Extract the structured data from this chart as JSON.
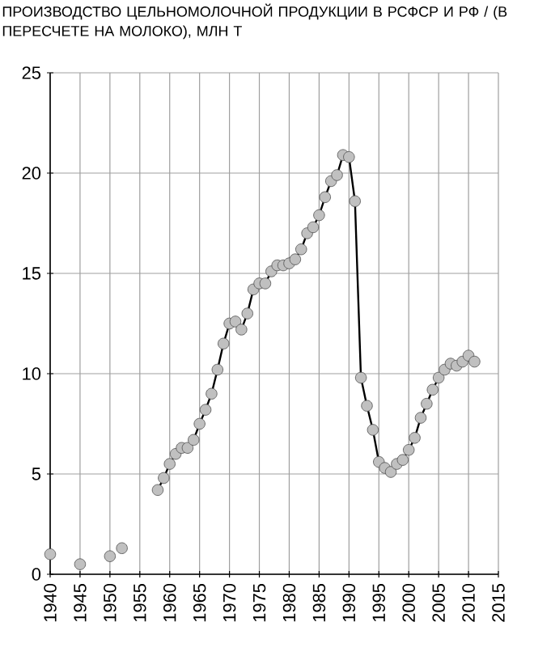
{
  "chart_data": {
    "type": "line",
    "title": "ПРОИЗВОДСТВО ЦЕЛЬНОМОЛОЧНОЙ ПРОДУКЦИИ В РСФСР И РФ / (В ПЕРЕСЧЕТЕ НА МОЛОКО), МЛН Т",
    "xlim": [
      1940,
      2015
    ],
    "xticks": [
      1940,
      1945,
      1950,
      1955,
      1960,
      1965,
      1970,
      1975,
      1980,
      1985,
      1990,
      1995,
      2000,
      2005,
      2010,
      2015
    ],
    "ylim": [
      0,
      25
    ],
    "yticks": [
      0,
      5,
      10,
      15,
      20,
      25
    ],
    "grid": true,
    "marker": "circle",
    "series": [
      {
        "type": "scatter",
        "color": "#c0c0c0",
        "x": [
          1940,
          1945,
          1950,
          1952
        ],
        "values": [
          1.0,
          0.5,
          0.9,
          1.3
        ]
      },
      {
        "color": "#c0c0c0",
        "x": [
          1958,
          1959,
          1960,
          1961,
          1962,
          1963,
          1964,
          1965,
          1966,
          1967,
          1968,
          1969,
          1970,
          1971,
          1972,
          1973,
          1974,
          1975,
          1976,
          1977,
          1978,
          1979,
          1980,
          1981,
          1982,
          1983,
          1984,
          1985,
          1986,
          1987,
          1988,
          1989,
          1990,
          1991,
          1992,
          1993,
          1994,
          1995,
          1996,
          1997,
          1998,
          1999,
          2000,
          2001,
          2002,
          2003,
          2004,
          2005,
          2006,
          2007,
          2008,
          2009,
          2010,
          2011
        ],
        "values": [
          4.2,
          4.8,
          5.5,
          6.0,
          6.3,
          6.3,
          6.7,
          7.5,
          8.2,
          9.0,
          10.2,
          11.5,
          12.5,
          12.6,
          12.2,
          13.0,
          14.2,
          14.5,
          14.5,
          15.1,
          15.4,
          15.4,
          15.5,
          15.7,
          16.2,
          17.0,
          17.3,
          17.9,
          18.8,
          19.6,
          19.9,
          20.9,
          20.8,
          18.6,
          9.8,
          8.4,
          7.2,
          5.6,
          5.3,
          5.1,
          5.5,
          5.7,
          6.2,
          6.8,
          7.8,
          8.5,
          9.2,
          9.8,
          10.2,
          10.5,
          10.4,
          10.6,
          10.9,
          10.6
        ]
      }
    ]
  }
}
